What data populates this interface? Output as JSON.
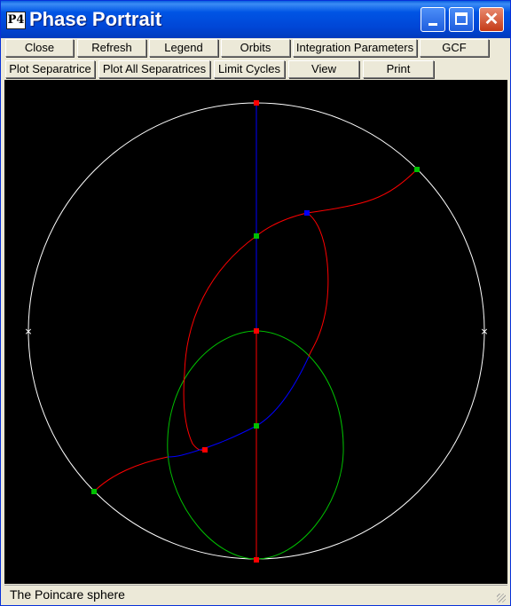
{
  "window": {
    "icon_label": "P4",
    "title": "Phase Portrait"
  },
  "toolbar": {
    "row1": [
      "Close",
      "Refresh",
      "Legend",
      "Orbits",
      "Integration Parameters",
      "GCF"
    ],
    "row2": [
      "Plot Separatrice",
      "Plot All Separatrices",
      "Limit Cycles",
      "View",
      "Print"
    ]
  },
  "plot": {
    "background": "#000000",
    "sphere_color": "#ffffff",
    "colors": {
      "red": "#ff0000",
      "blue": "#0000ff",
      "green": "#00c000"
    }
  },
  "status": {
    "text": "The Poincare sphere"
  }
}
